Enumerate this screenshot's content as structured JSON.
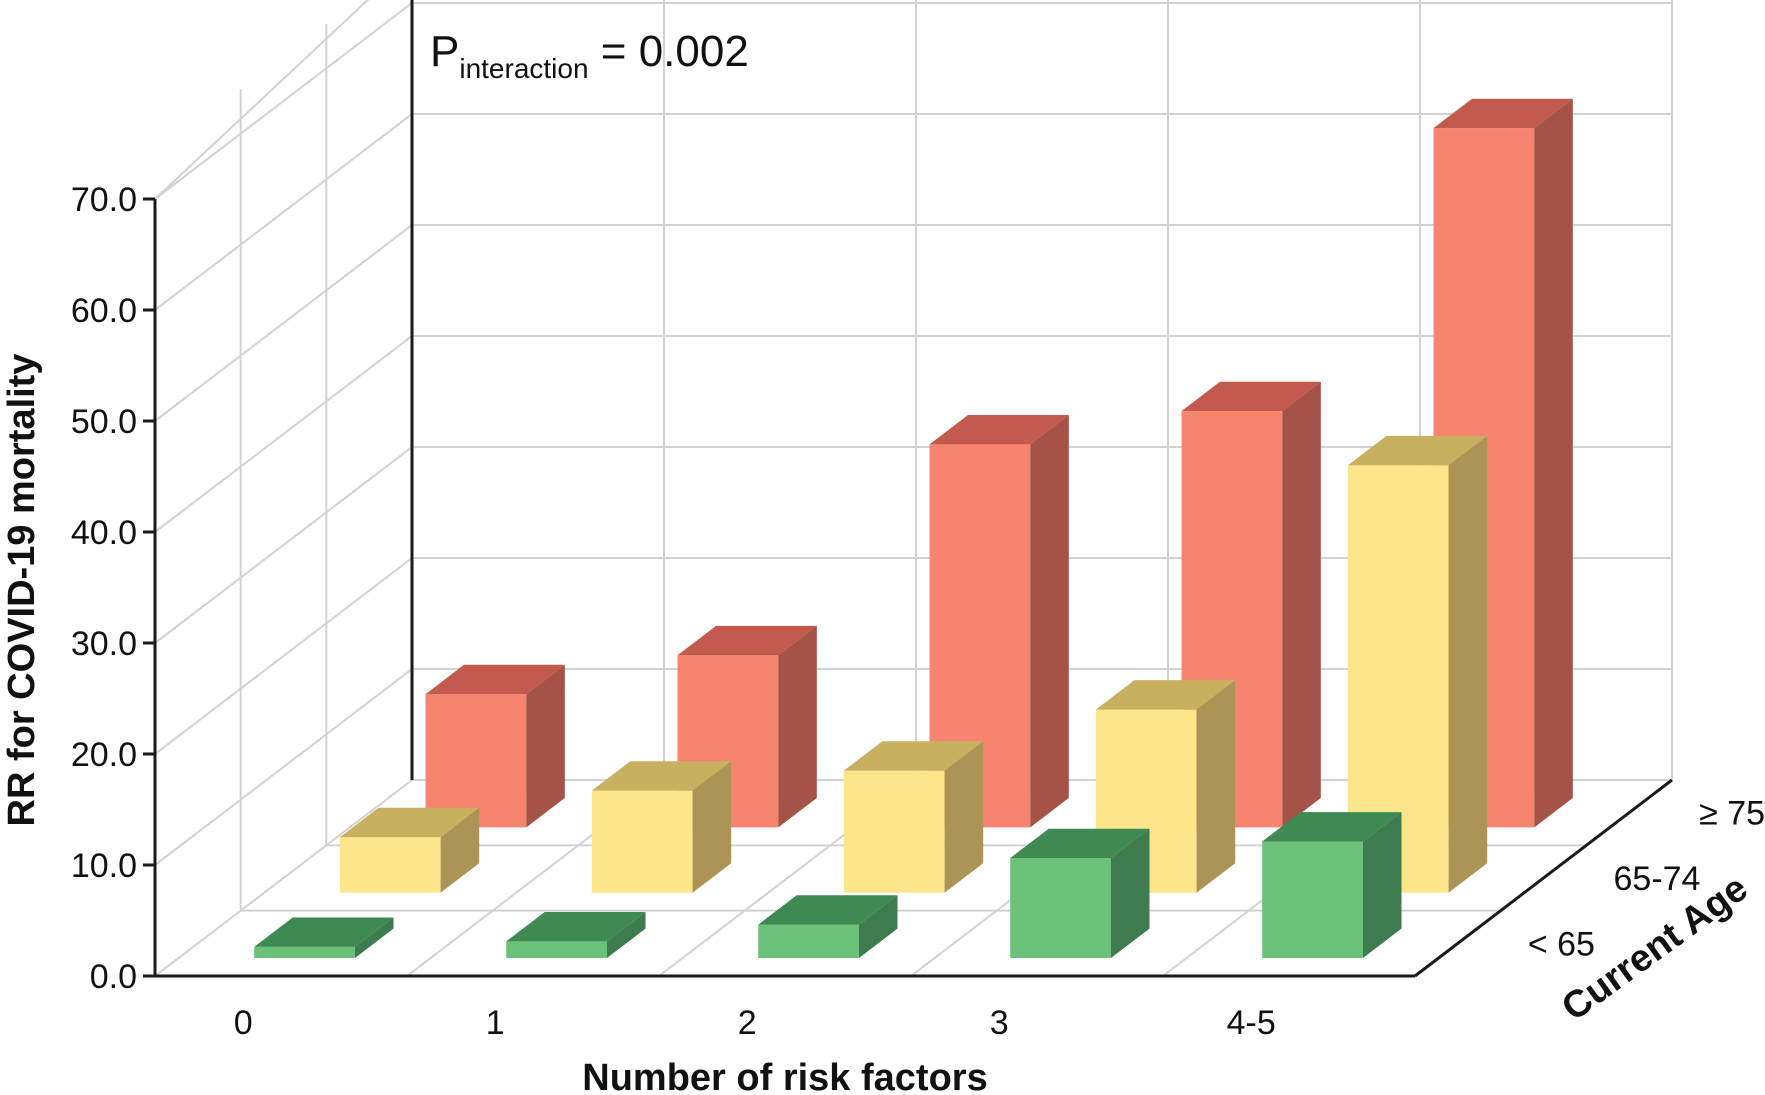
{
  "chart_data": {
    "type": "bar",
    "subtype": "3d-clustered-bar",
    "title": "",
    "annotation": {
      "main": "P",
      "subscript": "interaction",
      "rest": " = 0.002"
    },
    "xlabel": "Number of risk factors",
    "ylabel": "RR for COVID-19 mortality",
    "zlabel": "Current Age",
    "categories": [
      "0",
      "1",
      "2",
      "3",
      "4-5"
    ],
    "yticks": [
      "0.0",
      "10.0",
      "20.0",
      "30.0",
      "40.0",
      "50.0",
      "60.0",
      "70.0"
    ],
    "ylim": [
      0,
      70
    ],
    "grid": true,
    "series": [
      {
        "name": "< 65",
        "values": [
          1.0,
          1.5,
          3.0,
          9.0,
          10.5
        ],
        "front": "#6cc17a",
        "top": "#3f8a52",
        "side": "#3e7b4f"
      },
      {
        "name": "65-74",
        "values": [
          5.0,
          9.2,
          11.0,
          16.5,
          38.5
        ],
        "front": "#fde58a",
        "top": "#c8b061",
        "side": "#ab9456"
      },
      {
        "name": "≥ 75",
        "values": [
          12.0,
          15.5,
          34.5,
          37.5,
          63.0
        ],
        "front": "#f7846f",
        "top": "#c25a4e",
        "side": "#a55348"
      }
    ]
  }
}
